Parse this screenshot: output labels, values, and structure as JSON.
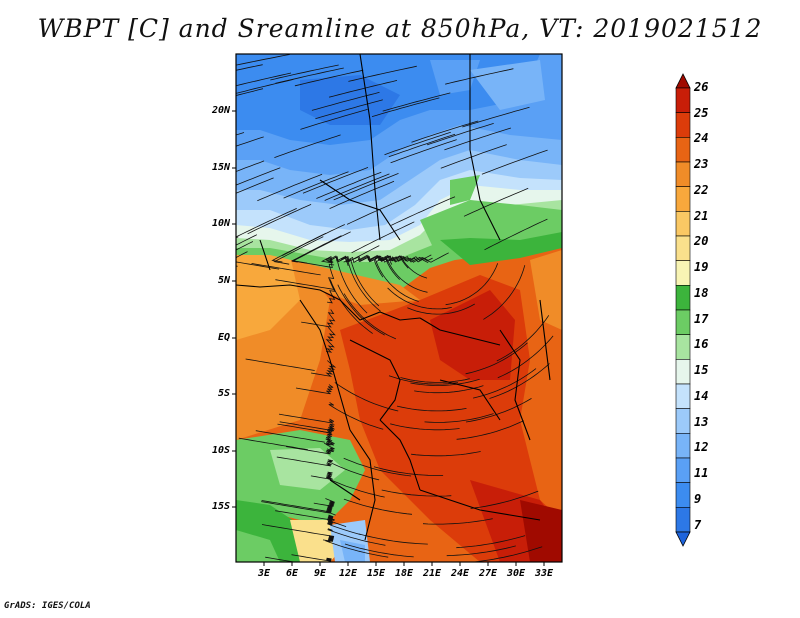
{
  "title": "WBPT [C] and Sreamline at 850hPa, VT: 2019021512",
  "credit": "GrADS: IGES/COLA",
  "lat_labels": [
    "20N",
    "15N",
    "10N",
    "5N",
    "EQ",
    "5S",
    "10S",
    "15S"
  ],
  "lon_labels": [
    "3E",
    "6E",
    "9E",
    "12E",
    "15E",
    "18E",
    "21E",
    "24E",
    "27E",
    "30E",
    "33E"
  ],
  "colorbar": {
    "labels": [
      "7",
      "9",
      "11",
      "12",
      "13",
      "14",
      "15",
      "16",
      "17",
      "18",
      "19",
      "20",
      "21",
      "22",
      "23",
      "24",
      "25",
      "26"
    ],
    "colors": [
      "#1e64dc",
      "#2d78e6",
      "#3c8cf0",
      "#5aa0f5",
      "#78b4f8",
      "#9ccafa",
      "#c4e2fc",
      "#e6f6ec",
      "#a8e4a0",
      "#6ccc64",
      "#3cb43c",
      "#f8f4b4",
      "#fae08c",
      "#fac864",
      "#f8a83c",
      "#f08c28",
      "#e86414",
      "#dc3c0a",
      "#c81e08",
      "#a00a00"
    ]
  }
}
